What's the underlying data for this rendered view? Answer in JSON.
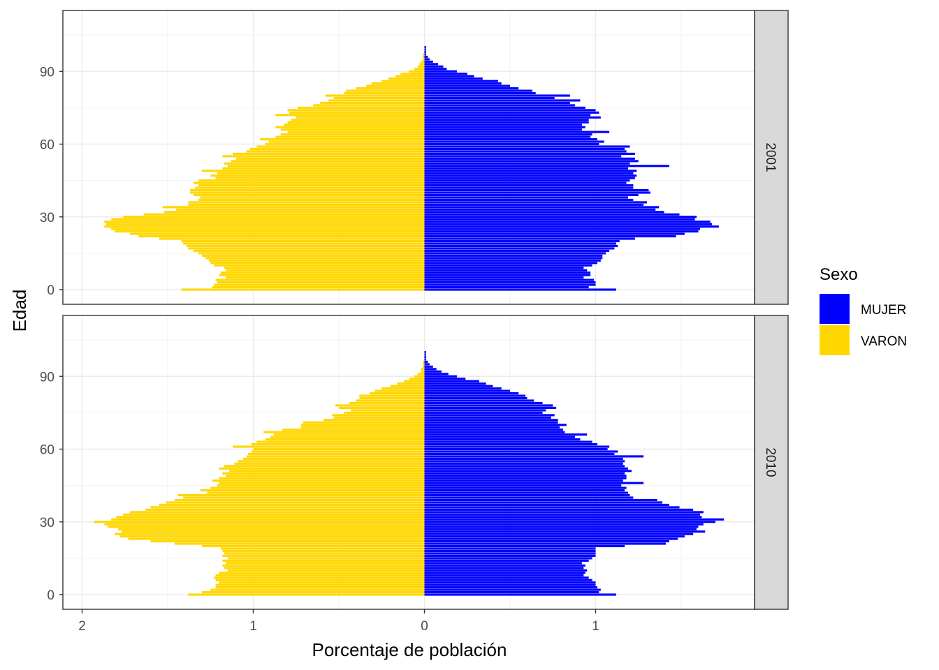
{
  "chart_data": {
    "type": "bar",
    "orientation": "horizontal",
    "layout": "population-pyramid",
    "xlabel": "Porcentaje de población",
    "ylabel": "Edad",
    "x_ticks": [
      {
        "value": -2,
        "label": "2"
      },
      {
        "value": -1,
        "label": "1"
      },
      {
        "value": 0,
        "label": "0"
      },
      {
        "value": 1,
        "label": "1"
      }
    ],
    "y_ticks": [
      0,
      30,
      60,
      90
    ],
    "xlim": [
      -2.0,
      1.93
    ],
    "ylim": [
      -6,
      113
    ],
    "grid": true,
    "legend": {
      "title": "Sexo",
      "position": "right",
      "entries": [
        {
          "key": "MUJER",
          "label": "MUJER",
          "color": "#0000FF"
        },
        {
          "key": "VARON",
          "label": "VARON",
          "color": "#FFD700"
        }
      ]
    },
    "panels": [
      {
        "strip": "2001",
        "series": [
          {
            "key": "MUJER",
            "age_start": 0,
            "values": [
              1.12,
              0.96,
              1.0,
              1.0,
              0.99,
              0.93,
              0.97,
              0.97,
              0.95,
              0.93,
              0.98,
              1.01,
              1.03,
              1.04,
              1.04,
              1.06,
              1.08,
              1.11,
              1.13,
              1.12,
              1.14,
              1.23,
              1.47,
              1.52,
              1.6,
              1.61,
              1.72,
              1.68,
              1.67,
              1.58,
              1.59,
              1.49,
              1.4,
              1.35,
              1.37,
              1.28,
              1.3,
              1.22,
              1.19,
              1.25,
              1.32,
              1.31,
              1.22,
              1.22,
              1.18,
              1.2,
              1.23,
              1.24,
              1.22,
              1.24,
              1.19,
              1.43,
              1.2,
              1.25,
              1.23,
              1.15,
              1.23,
              1.18,
              1.17,
              1.2,
              1.02,
              1.05,
              1.01,
              0.97,
              0.98,
              1.08,
              0.92,
              0.94,
              0.92,
              0.96,
              0.96,
              1.03,
              0.97,
              1.02,
              1.0,
              0.94,
              0.88,
              0.85,
              0.91,
              0.76,
              0.85,
              0.65,
              0.63,
              0.55,
              0.5,
              0.45,
              0.43,
              0.34,
              0.29,
              0.25,
              0.19,
              0.13,
              0.11,
              0.08,
              0.05,
              0.03,
              0.02,
              0.01,
              0.01,
              0.01,
              0.01
            ]
          },
          {
            "key": "VARON",
            "age_start": 0,
            "values": [
              1.42,
              1.24,
              1.23,
              1.21,
              1.22,
              1.16,
              1.2,
              1.19,
              1.16,
              1.17,
              1.23,
              1.25,
              1.26,
              1.28,
              1.3,
              1.32,
              1.35,
              1.38,
              1.39,
              1.41,
              1.42,
              1.55,
              1.67,
              1.72,
              1.81,
              1.83,
              1.87,
              1.86,
              1.87,
              1.83,
              1.76,
              1.64,
              1.52,
              1.45,
              1.53,
              1.38,
              1.38,
              1.32,
              1.31,
              1.35,
              1.37,
              1.37,
              1.34,
              1.32,
              1.35,
              1.32,
              1.22,
              1.25,
              1.21,
              1.3,
              1.18,
              1.15,
              1.17,
              1.13,
              1.1,
              1.18,
              1.12,
              1.04,
              1.02,
              0.98,
              0.93,
              0.91,
              0.96,
              0.87,
              0.84,
              0.8,
              0.84,
              0.87,
              0.82,
              0.8,
              0.78,
              0.75,
              0.87,
              0.79,
              0.8,
              0.74,
              0.65,
              0.61,
              0.56,
              0.53,
              0.58,
              0.47,
              0.46,
              0.4,
              0.34,
              0.31,
              0.25,
              0.21,
              0.17,
              0.14,
              0.09,
              0.06,
              0.04,
              0.03,
              0.02,
              0.01,
              0.01,
              0.01,
              0.0,
              0.0,
              0.0
            ]
          }
        ]
      },
      {
        "strip": "2010",
        "series": [
          {
            "key": "MUJER",
            "age_start": 0,
            "values": [
              1.12,
              1.02,
              1.03,
              1.01,
              1.0,
              1.0,
              0.98,
              0.96,
              0.93,
              0.94,
              0.95,
              0.93,
              0.94,
              0.92,
              0.96,
              0.98,
              1.0,
              1.0,
              1.0,
              1.0,
              1.17,
              1.41,
              1.43,
              1.48,
              1.52,
              1.57,
              1.64,
              1.59,
              1.6,
              1.63,
              1.7,
              1.75,
              1.62,
              1.61,
              1.63,
              1.57,
              1.49,
              1.43,
              1.39,
              1.36,
              1.22,
              1.2,
              1.19,
              1.17,
              1.18,
              1.15,
              1.28,
              1.16,
              1.18,
              1.18,
              1.17,
              1.21,
              1.19,
              1.17,
              1.16,
              1.17,
              1.16,
              1.28,
              1.11,
              1.13,
              1.07,
              1.08,
              1.01,
              0.98,
              0.91,
              0.88,
              0.95,
              0.82,
              0.81,
              0.79,
              0.83,
              0.78,
              0.78,
              0.74,
              0.76,
              0.69,
              0.71,
              0.77,
              0.75,
              0.69,
              0.64,
              0.6,
              0.59,
              0.55,
              0.5,
              0.45,
              0.4,
              0.36,
              0.32,
              0.24,
              0.19,
              0.14,
              0.1,
              0.07,
              0.05,
              0.03,
              0.02,
              0.01,
              0.01,
              0.01,
              0.01
            ]
          },
          {
            "key": "VARON",
            "age_start": 0,
            "values": [
              1.38,
              1.3,
              1.25,
              1.22,
              1.22,
              1.2,
              1.22,
              1.23,
              1.22,
              1.2,
              1.15,
              1.17,
              1.18,
              1.16,
              1.18,
              1.15,
              1.18,
              1.17,
              1.18,
              1.19,
              1.3,
              1.46,
              1.6,
              1.73,
              1.78,
              1.81,
              1.77,
              1.79,
              1.85,
              1.87,
              1.93,
              1.83,
              1.8,
              1.76,
              1.72,
              1.63,
              1.6,
              1.55,
              1.51,
              1.46,
              1.41,
              1.44,
              1.27,
              1.31,
              1.25,
              1.21,
              1.2,
              1.24,
              1.2,
              1.16,
              1.18,
              1.14,
              1.2,
              1.17,
              1.11,
              1.09,
              1.06,
              1.04,
              1.03,
              1.01,
              1.0,
              1.12,
              1.01,
              0.98,
              0.93,
              0.9,
              0.88,
              0.94,
              0.83,
              0.72,
              0.72,
              0.71,
              0.59,
              0.53,
              0.54,
              0.47,
              0.43,
              0.5,
              0.52,
              0.44,
              0.4,
              0.38,
              0.38,
              0.32,
              0.29,
              0.25,
              0.2,
              0.16,
              0.12,
              0.09,
              0.06,
              0.04,
              0.02,
              0.02,
              0.01,
              0.01,
              0.01,
              0.0,
              0.0,
              0.0,
              0.0
            ]
          }
        ]
      }
    ]
  }
}
